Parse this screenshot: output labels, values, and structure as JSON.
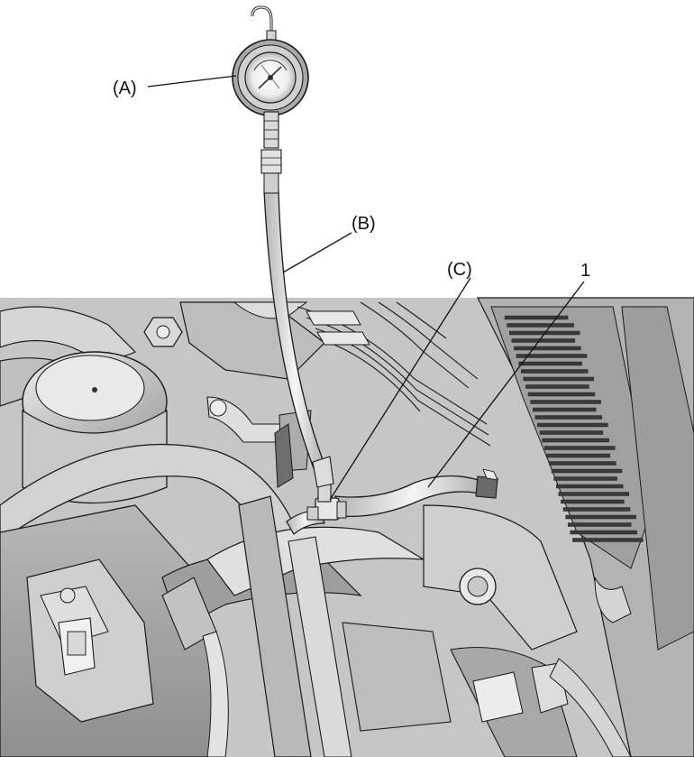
{
  "callouts": {
    "a": "(A)",
    "b": "(B)",
    "c": "(C)",
    "one": "1"
  },
  "components": {
    "gauge": "pressure-gauge",
    "hose": "gauge-hose",
    "connector": "three-way-joint",
    "fuel_hose": "fuel-feed-hose"
  },
  "colors": {
    "engine_bay": "#c8c8c8",
    "engine_dark": "#8a8a8a",
    "parts_light": "#e4e4e4",
    "outline": "#1a1a1a",
    "background": "#ffffff"
  }
}
